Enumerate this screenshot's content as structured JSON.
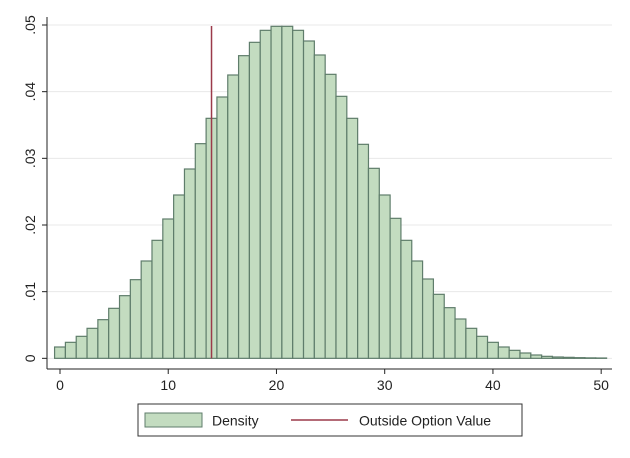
{
  "chart_data": {
    "type": "bar",
    "x": [
      0,
      1,
      2,
      3,
      4,
      5,
      6,
      7,
      8,
      9,
      10,
      11,
      12,
      13,
      14,
      15,
      16,
      17,
      18,
      19,
      20,
      21,
      22,
      23,
      24,
      25,
      26,
      27,
      28,
      29,
      30,
      31,
      32,
      33,
      34,
      35,
      36,
      37,
      38,
      39,
      40,
      41,
      42,
      43,
      44,
      45,
      46,
      47,
      48,
      49,
      50
    ],
    "values": [
      0.0017,
      0.0024,
      0.0033,
      0.0045,
      0.0058,
      0.0075,
      0.0094,
      0.0118,
      0.0146,
      0.0177,
      0.0209,
      0.0245,
      0.0284,
      0.0322,
      0.036,
      0.0392,
      0.0425,
      0.0454,
      0.0474,
      0.0492,
      0.0498,
      0.0498,
      0.0492,
      0.0476,
      0.0455,
      0.0426,
      0.0393,
      0.036,
      0.0321,
      0.0285,
      0.0245,
      0.021,
      0.0177,
      0.0146,
      0.0119,
      0.0096,
      0.0076,
      0.0059,
      0.0045,
      0.0033,
      0.0024,
      0.0017,
      0.0012,
      0.0008,
      0.0005,
      0.0003,
      0.0002,
      0.00015,
      0.0001,
      7e-05,
      5e-05
    ],
    "xlim": [
      -1.2,
      51
    ],
    "ylim": [
      -0.0016,
      0.0512
    ],
    "xticks": [
      0,
      10,
      20,
      30,
      40,
      50
    ],
    "xtick_labels": [
      "0",
      "10",
      "20",
      "30",
      "40",
      "50"
    ],
    "yticks": [
      0,
      0.01,
      0.02,
      0.03,
      0.04,
      0.05
    ],
    "ytick_labels": [
      "0",
      ".01",
      ".02",
      ".03",
      ".04",
      ".05"
    ],
    "vline": {
      "x": 14,
      "name": "Outside Option Value",
      "color": "#9b3a4a"
    },
    "series_name": "Density",
    "bar_fill": "#c3dcc0",
    "bar_edge": "#5f7d6b",
    "grid": true,
    "grid_color": "#e8e8e8",
    "legend_position": "bottom"
  },
  "legend": {
    "items": [
      {
        "label": "Density"
      },
      {
        "label": "Outside Option Value"
      }
    ]
  }
}
